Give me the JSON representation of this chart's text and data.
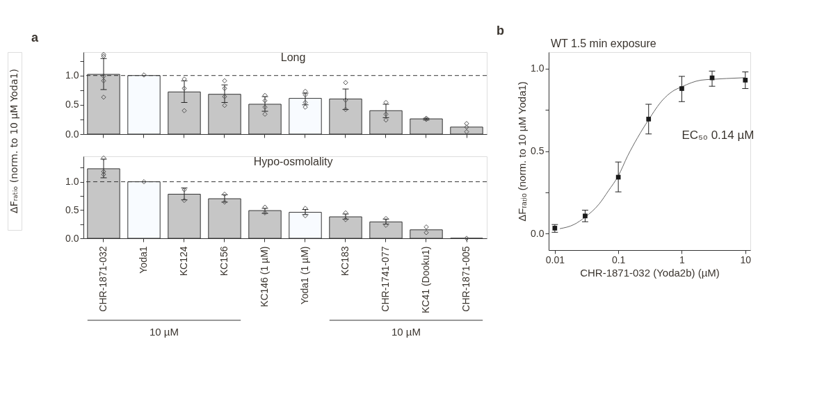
{
  "chart_data": [
    {
      "type": "bar",
      "title": "Long",
      "ylabel": "ΔFᵣₐₜᵢₒ (norm. to 10 µM Yoda1)",
      "annotations": [
        "a"
      ],
      "categories": [
        "CHR-1871-032",
        "Yoda1",
        "KC124",
        "KC156",
        "KC146 (1 µM)",
        "Yoda1 (1 µM)",
        "KC183",
        "CHR-1741-077",
        "KC41 (Dooku1)",
        "CHR-1871-005"
      ],
      "series": [
        {
          "values": [
            1.02,
            1.0,
            0.72,
            0.68,
            0.51,
            0.61,
            0.6,
            0.4,
            0.26,
            0.12
          ],
          "colors": [
            "#c6c6c6",
            "#f8fbff",
            "#c6c6c6",
            "#c6c6c6",
            "#c6c6c6",
            "#f8fbff",
            "#c6c6c6",
            "#c6c6c6",
            "#c6c6c6",
            "#c6c6c6"
          ],
          "errors": [
            [
              0.76,
              1.29
            ],
            null,
            [
              0.54,
              0.91
            ],
            [
              0.54,
              0.84
            ],
            [
              0.39,
              0.64
            ],
            [
              0.5,
              0.7
            ],
            [
              0.42,
              0.77
            ],
            [
              0.28,
              0.51
            ],
            [
              0.24,
              0.27
            ],
            null
          ]
        },
        {
          "type": "scatter",
          "color": "#555555",
          "marker": "diamond",
          "x": [
            "CHR-1871-032",
            "CHR-1871-032",
            "CHR-1871-032",
            "CHR-1871-032",
            "CHR-1871-032",
            "Yoda1",
            "KC124",
            "KC124",
            "KC124",
            "KC156",
            "KC156",
            "KC156",
            "KC156",
            "KC146 (1 µM)",
            "KC146 (1 µM)",
            "KC146 (1 µM)",
            "KC146 (1 µM)",
            "Yoda1 (1 µM)",
            "Yoda1 (1 µM)",
            "Yoda1 (1 µM)",
            "Yoda1 (1 µM)",
            "KC183",
            "KC183",
            "KC183",
            "CHR-1741-077",
            "CHR-1741-077",
            "CHR-1741-077",
            "KC41 (Dooku1)",
            "KC41 (Dooku1)",
            "CHR-1871-005",
            "CHR-1871-005",
            "CHR-1871-005"
          ],
          "values": [
            1.36,
            1.33,
            0.99,
            0.91,
            0.63,
            1.01,
            0.94,
            0.78,
            0.4,
            0.91,
            0.78,
            0.64,
            0.49,
            0.66,
            0.57,
            0.46,
            0.34,
            0.73,
            0.67,
            0.54,
            0.46,
            0.88,
            0.58,
            0.42,
            0.54,
            0.34,
            0.24,
            0.25,
            0.27,
            0.18,
            0.12,
            0.04
          ]
        }
      ],
      "ylim": [
        0,
        1.4
      ],
      "yticks": [
        {
          "value": 0,
          "label": "0.0"
        },
        {
          "value": 0.25,
          "label": null
        },
        {
          "value": 0.5,
          "label": "0.5"
        },
        {
          "value": 0.75,
          "label": null
        },
        {
          "value": 1,
          "label": "1.0"
        },
        {
          "value": 1.25,
          "label": null
        }
      ],
      "ref_lines": [
        {
          "axis": "y",
          "value": 1,
          "line_style": "dashed"
        }
      ],
      "tick_labels": "y",
      "grid": false,
      "legend": false
    },
    {
      "type": "bar",
      "title": "Hypo-osmolality",
      "annotations": [
        "10 µM",
        "10 µM"
      ],
      "categories": [
        "CHR-1871-032",
        "Yoda1",
        "KC124",
        "KC156",
        "KC146 (1 µM)",
        "Yoda1 (1 µM)",
        "KC183",
        "CHR-1741-077",
        "KC41 (Dooku1)",
        "CHR-1871-005"
      ],
      "series": [
        {
          "values": [
            1.23,
            1.0,
            0.78,
            0.7,
            0.49,
            0.46,
            0.38,
            0.29,
            0.15,
            0.0
          ],
          "colors": [
            "#c6c6c6",
            "#f8fbff",
            "#c6c6c6",
            "#c6c6c6",
            "#c6c6c6",
            "#f8fbff",
            "#c6c6c6",
            "#c6c6c6",
            "#c6c6c6",
            "#c6c6c6"
          ],
          "errors": [
            [
              1.07,
              1.4
            ],
            null,
            [
              0.68,
              0.89
            ],
            [
              0.64,
              0.77
            ],
            [
              0.44,
              0.53
            ],
            [
              0.42,
              0.51
            ],
            [
              0.34,
              0.43
            ],
            [
              0.25,
              0.34
            ],
            null,
            null
          ]
        },
        {
          "type": "scatter",
          "color": "#555555",
          "marker": "diamond",
          "x": [
            "CHR-1871-032",
            "CHR-1871-032",
            "CHR-1871-032",
            "Yoda1",
            "KC124",
            "KC124",
            "KC156",
            "KC156",
            "KC146 (1 µM)",
            "KC146 (1 µM)",
            "Yoda1 (1 µM)",
            "Yoda1 (1 µM)",
            "KC183",
            "KC183",
            "CHR-1741-077",
            "CHR-1741-077",
            "KC41 (Dooku1)",
            "KC41 (Dooku1)",
            "CHR-1871-005"
          ],
          "values": [
            1.42,
            1.18,
            1.13,
            1.0,
            0.86,
            0.67,
            0.78,
            0.64,
            0.55,
            0.45,
            0.53,
            0.4,
            0.45,
            0.33,
            0.35,
            0.23,
            0.2,
            0.1,
            0.0
          ]
        }
      ],
      "ylim": [
        0,
        1.45
      ],
      "yticks": [
        {
          "value": 0,
          "label": "0.0"
        },
        {
          "value": 0.25,
          "label": null
        },
        {
          "value": 0.5,
          "label": "0.5"
        },
        {
          "value": 0.75,
          "label": null
        },
        {
          "value": 1,
          "label": "1.0"
        },
        {
          "value": 1.25,
          "label": null
        }
      ],
      "ref_lines": [
        {
          "axis": "y",
          "value": 1,
          "line_style": "dashed"
        }
      ],
      "grid": false,
      "legend": false
    },
    {
      "type": "scatter",
      "title": "WT 1.5 min exposure",
      "xlabel": "CHR-1871-032 (Yoda2b) (µM)",
      "ylabel": "ΔFᵣₐₜᵢₒ (norm. to 10 µM Yoda1)",
      "annotations": [
        "b",
        "EC₅₀ 0.14 µM"
      ],
      "series": [
        {
          "type": "line",
          "color": "#666666",
          "marker": "none",
          "x": [
            0.012,
            0.02,
            0.03,
            0.05,
            0.07,
            0.1,
            0.14,
            0.2,
            0.3,
            0.5,
            0.7,
            1,
            2,
            3,
            5,
            10
          ],
          "values": [
            0.03,
            0.055,
            0.1,
            0.18,
            0.26,
            0.35,
            0.47,
            0.58,
            0.69,
            0.81,
            0.86,
            0.89,
            0.93,
            0.935,
            0.94,
            0.945
          ]
        },
        {
          "color": "#1a1a1a",
          "marker": "square",
          "x": [
            0.01,
            0.03,
            0.1,
            0.3,
            1,
            3,
            10
          ],
          "values": [
            0.033,
            0.107,
            0.342,
            0.694,
            0.879,
            0.944,
            0.93
          ],
          "errors": [
            [
              0.008,
              0.055
            ],
            [
              0.072,
              0.142
            ],
            [
              0.253,
              0.434
            ],
            [
              0.604,
              0.784
            ],
            [
              0.8,
              0.953
            ],
            [
              0.893,
              0.985
            ],
            [
              0.879,
              0.98
            ]
          ]
        }
      ],
      "log": "x",
      "xlim": [
        0.008,
        12
      ],
      "xticks": [
        0.01,
        0.1,
        1,
        10
      ],
      "ylim": [
        -0.1,
        1.1
      ],
      "yticks": [
        {
          "value": 0,
          "label": "0.0"
        },
        {
          "value": 0.25,
          "label": null
        },
        {
          "value": 0.5,
          "label": "0.5"
        },
        {
          "value": 0.75,
          "label": null
        },
        {
          "value": 1,
          "label": "1.0"
        }
      ],
      "grid": false,
      "legend": false
    }
  ]
}
